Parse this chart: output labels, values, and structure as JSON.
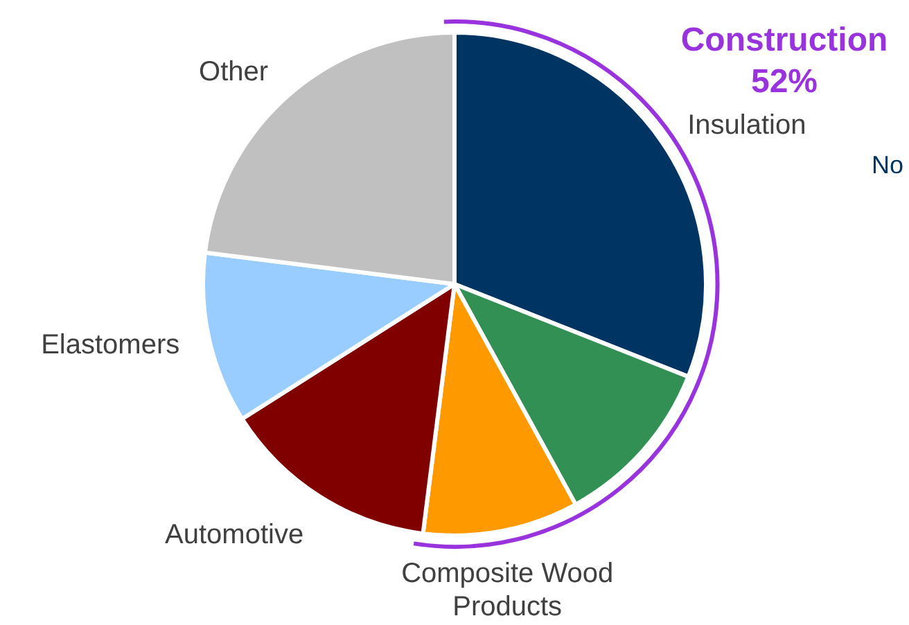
{
  "chart_data": {
    "type": "pie",
    "categories": [
      "Insulation",
      null,
      "Composite Wood\nProducts",
      "Automotive",
      "Elastomers",
      "Other"
    ],
    "values": [
      31,
      11,
      10,
      14,
      11,
      23
    ],
    "colors": [
      "#003462",
      "#339055",
      "#ff9900",
      "#800000",
      "#99ccff",
      "#c0c0c0"
    ],
    "annotations": [
      "Construction\n52%",
      "No"
    ],
    "legend": false
  }
}
